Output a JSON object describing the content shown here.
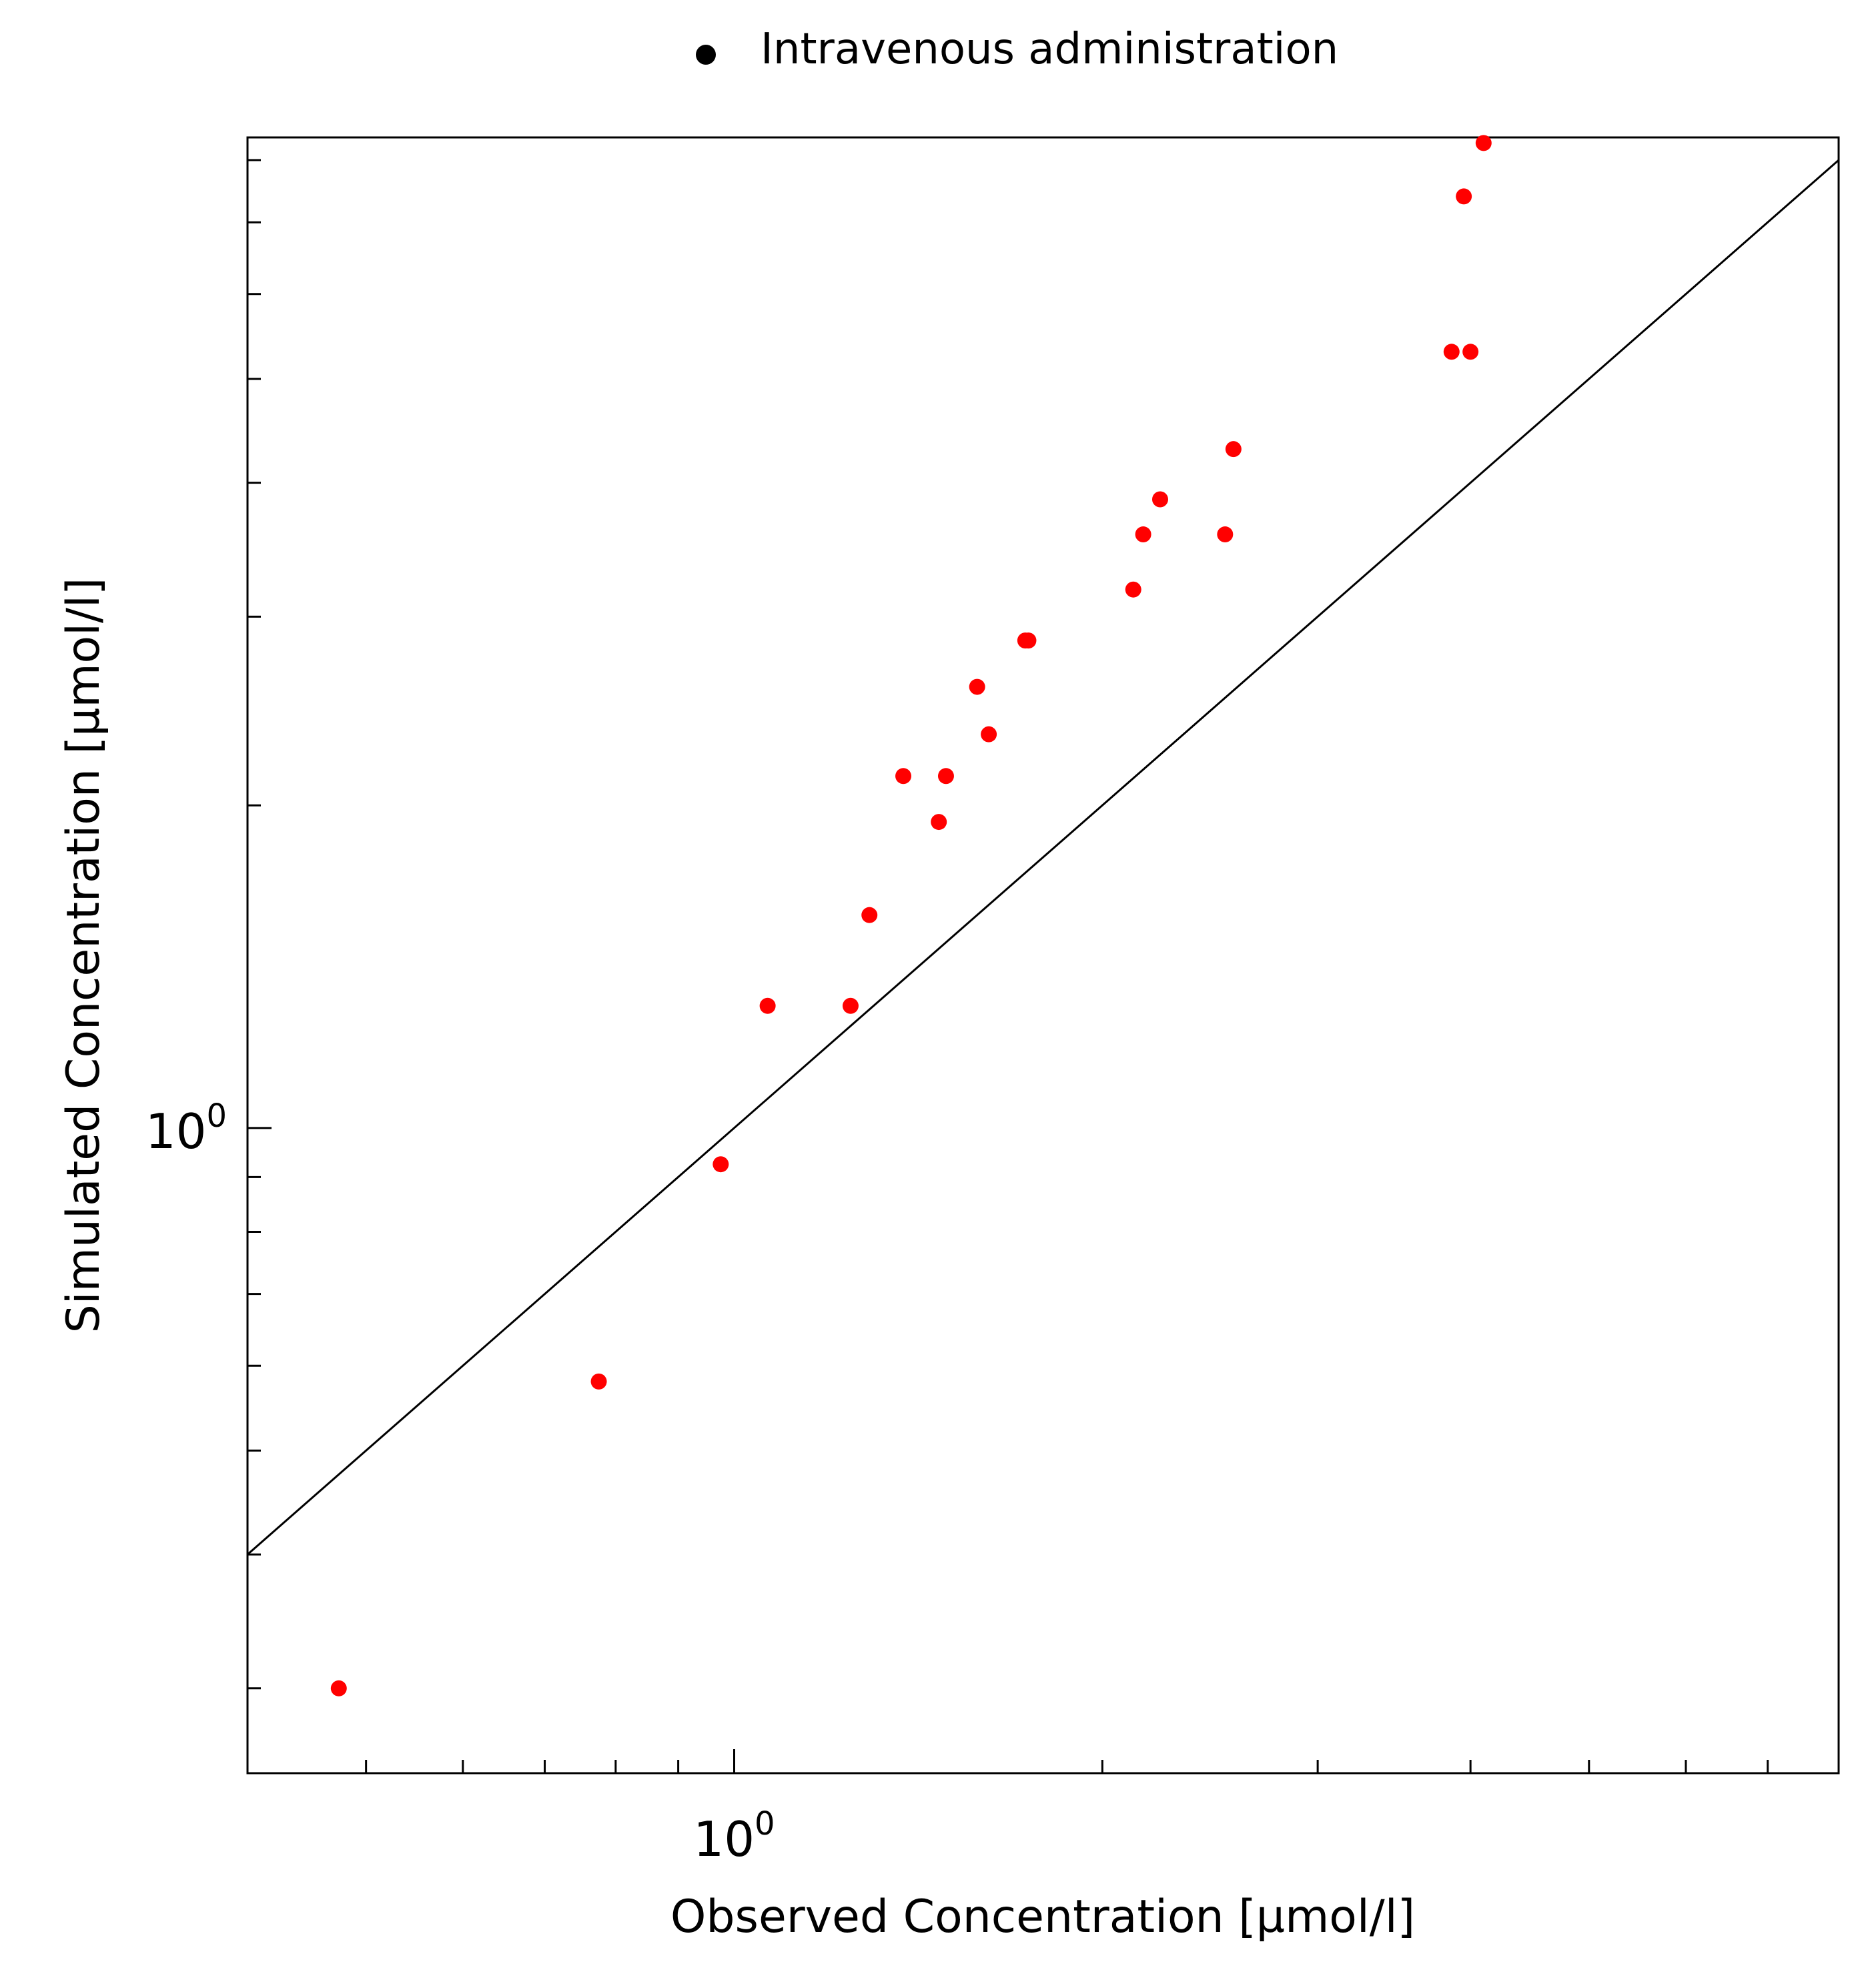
{
  "chart_data": {
    "type": "scatter",
    "xscale": "log",
    "yscale": "log",
    "xlabel": "Observed Concentration [µmol/l]",
    "ylabel": "Simulated Concentration [µmol/l]",
    "xlim": [
      0.4,
      8
    ],
    "ylim": [
      0.25,
      8.4
    ],
    "x_tick_label": {
      "base": "10",
      "exponent": "0",
      "value": 1
    },
    "y_tick_label": {
      "base": "10",
      "exponent": "0",
      "value": 1
    },
    "legend": {
      "position": "top-center",
      "label": "Intravenous administration",
      "marker_color": "#000000"
    },
    "reference_line": "identity (y = x)",
    "series": [
      {
        "name": "Intravenous administration",
        "color": "#ff0000",
        "points": [
          {
            "x": 0.475,
            "y": 0.3
          },
          {
            "x": 0.775,
            "y": 0.58
          },
          {
            "x": 0.975,
            "y": 0.925
          },
          {
            "x": 1.065,
            "y": 1.3
          },
          {
            "x": 1.245,
            "y": 1.3
          },
          {
            "x": 1.29,
            "y": 1.58
          },
          {
            "x": 1.375,
            "y": 2.13
          },
          {
            "x": 1.47,
            "y": 1.93
          },
          {
            "x": 1.49,
            "y": 2.13
          },
          {
            "x": 1.58,
            "y": 2.58
          },
          {
            "x": 1.615,
            "y": 2.33
          },
          {
            "x": 1.73,
            "y": 2.85
          },
          {
            "x": 1.74,
            "y": 2.85
          },
          {
            "x": 2.12,
            "y": 3.18
          },
          {
            "x": 2.16,
            "y": 3.58
          },
          {
            "x": 2.23,
            "y": 3.86
          },
          {
            "x": 2.52,
            "y": 3.58
          },
          {
            "x": 2.56,
            "y": 4.3
          },
          {
            "x": 3.86,
            "y": 5.3
          },
          {
            "x": 4.0,
            "y": 5.3
          },
          {
            "x": 3.95,
            "y": 7.4
          },
          {
            "x": 4.1,
            "y": 8.3
          }
        ]
      }
    ]
  }
}
